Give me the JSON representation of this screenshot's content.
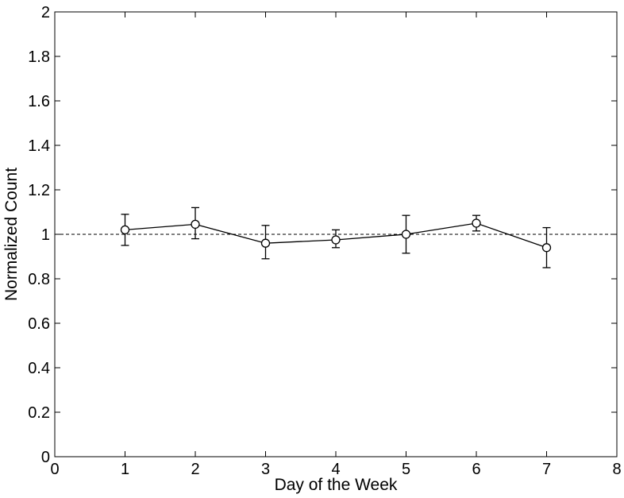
{
  "chart_data": {
    "type": "line",
    "title": "",
    "xlabel": "Day of the Week",
    "ylabel": "Normalized Count",
    "xlim": [
      0,
      8
    ],
    "ylim": [
      0,
      2
    ],
    "xticks": [
      0,
      1,
      2,
      3,
      4,
      5,
      6,
      7,
      8
    ],
    "yticks": [
      0,
      0.2,
      0.4,
      0.6,
      0.8,
      1,
      1.2,
      1.4,
      1.6,
      1.8,
      2
    ],
    "xtick_labels": [
      "0",
      "1",
      "2",
      "3",
      "4",
      "5",
      "6",
      "7",
      "8"
    ],
    "ytick_labels": [
      "0",
      "0.2",
      "0.4",
      "0.6",
      "0.8",
      "1",
      "1.2",
      "1.4",
      "1.6",
      "1.8",
      "2"
    ],
    "grid": false,
    "reference_line": {
      "y": 1,
      "style": "dashed"
    },
    "series": [
      {
        "x": [
          1,
          2,
          3,
          4,
          5,
          6,
          7
        ],
        "y": [
          1.02,
          1.045,
          0.96,
          0.975,
          1.0,
          1.05,
          0.94
        ],
        "yerr_low": [
          0.95,
          0.98,
          0.89,
          0.94,
          0.915,
          1.015,
          0.85
        ],
        "yerr_high": [
          1.09,
          1.12,
          1.04,
          1.02,
          1.085,
          1.085,
          1.03
        ],
        "marker": "circle-open",
        "color": "#000000"
      }
    ]
  }
}
